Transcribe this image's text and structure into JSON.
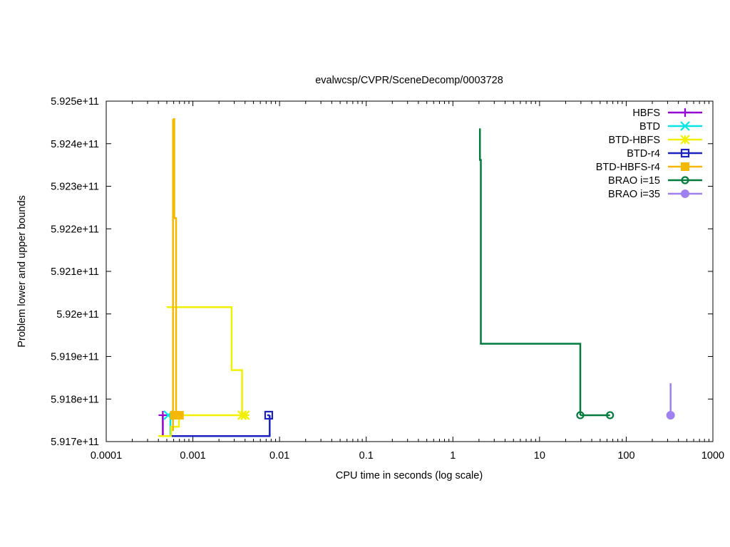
{
  "chart_data": {
    "type": "line",
    "title": "evalwcsp/CVPR/SceneDecomp/0003728",
    "xlabel": "CPU time in seconds (log scale)",
    "ylabel": "Problem lower and upper bounds",
    "x_scale": "log",
    "xlim": [
      0.0001,
      1000
    ],
    "ylim": [
      591700000000,
      592500000000
    ],
    "x_ticks": [
      0.0001,
      0.001,
      0.01,
      0.1,
      1,
      10,
      100,
      1000
    ],
    "x_tick_labels": [
      "0.0001",
      "0.001",
      "0.01",
      "0.1",
      "1",
      "10",
      "100",
      "1000"
    ],
    "y_ticks": [
      591700000000,
      591800000000,
      591900000000,
      592000000000,
      592100000000,
      592200000000,
      592300000000,
      592400000000,
      592500000000
    ],
    "y_tick_labels": [
      "5.917e+11",
      "5.918e+11",
      "5.919e+11",
      "5.92e+11",
      "5.921e+11",
      "5.922e+11",
      "5.923e+11",
      "5.924e+11",
      "5.925e+11"
    ],
    "grid": false,
    "legend_position": "top-right",
    "series": [
      {
        "name": "HBFS",
        "color": "#9400d3",
        "marker": "plus",
        "lines": [
          [
            [
              0.00045,
              591712000000
            ],
            [
              0.00045,
              591762000000
            ]
          ],
          [
            [
              0.00045,
              591762000000
            ],
            [
              0.00047,
              591762000000
            ]
          ]
        ],
        "markers": [
          [
            0.00045,
            591762000000
          ]
        ]
      },
      {
        "name": "BTD",
        "color": "#00e5e5",
        "marker": "cross",
        "lines": [
          [
            [
              0.00055,
              591712000000
            ],
            [
              0.00055,
              591762000000
            ]
          ],
          [
            [
              0.00052,
              591762000000
            ],
            [
              0.00055,
              591762000000
            ]
          ]
        ],
        "markers": [
          [
            0.00052,
            591762000000
          ]
        ]
      },
      {
        "name": "BTD-HBFS",
        "color": "#f0f000",
        "marker": "star",
        "lines": [
          [
            [
              0.0004,
              591713000000
            ],
            [
              0.00056,
              591713000000
            ],
            [
              0.00056,
              591735000000
            ],
            [
              0.00069,
              591735000000
            ],
            [
              0.00069,
              591762000000
            ]
          ],
          [
            [
              0.0005,
              592016000000
            ],
            [
              0.0028,
              592016000000
            ],
            [
              0.0028,
              591868000000
            ],
            [
              0.0037,
              591868000000
            ],
            [
              0.0037,
              591762000000
            ],
            [
              0.004,
              591762000000
            ]
          ],
          [
            [
              0.00069,
              591762000000
            ],
            [
              0.004,
              591762000000
            ]
          ]
        ],
        "markers": [
          [
            0.0037,
            591762000000
          ],
          [
            0.004,
            591762000000
          ]
        ]
      },
      {
        "name": "BTD-r4",
        "color": "#1a22c0",
        "marker": "open-square",
        "lines": [
          [
            [
              0.00057,
              591713000000
            ],
            [
              0.0077,
              591713000000
            ],
            [
              0.0077,
              591762000000
            ]
          ],
          [
            [
              0.0072,
              591762000000
            ],
            [
              0.0077,
              591762000000
            ]
          ]
        ],
        "markers": [
          [
            0.0075,
            591762000000
          ]
        ]
      },
      {
        "name": "BTD-HBFS-r4",
        "color": "#f5b800",
        "marker": "filled-square",
        "lines": [
          [
            [
              0.00059,
              591725000000
            ],
            [
              0.00059,
              592458000000
            ]
          ],
          [
            [
              0.00059,
              592458000000
            ],
            [
              0.00061,
              592458000000
            ],
            [
              0.00061,
              592225000000
            ],
            [
              0.00064,
              592225000000
            ],
            [
              0.00064,
              591762000000
            ]
          ],
          [
            [
              0.00059,
              591762000000
            ],
            [
              0.00071,
              591762000000
            ]
          ]
        ],
        "markers": [
          [
            0.00061,
            591762000000
          ],
          [
            0.0007,
            591762000000
          ]
        ]
      },
      {
        "name": "BRAO i=15",
        "color": "#007a3d",
        "marker": "open-circle",
        "lines": [
          [
            [
              2.05,
              592436000000
            ],
            [
              2.05,
              592362000000
            ],
            [
              2.1,
              592362000000
            ],
            [
              2.1,
              591930000000
            ],
            [
              29.5,
              591930000000
            ],
            [
              29.5,
              591762000000
            ]
          ],
          [
            [
              29.5,
              591762000000
            ],
            [
              65,
              591762000000
            ]
          ]
        ],
        "markers": [
          [
            29.5,
            591762000000
          ],
          [
            65,
            591762000000
          ]
        ]
      },
      {
        "name": "BRAO i=35",
        "color": "#a080f0",
        "marker": "filled-circle",
        "lines": [
          [
            [
              325,
              591837000000
            ],
            [
              325,
              591762000000
            ]
          ]
        ],
        "markers": [
          [
            325,
            591762000000
          ]
        ]
      }
    ]
  }
}
